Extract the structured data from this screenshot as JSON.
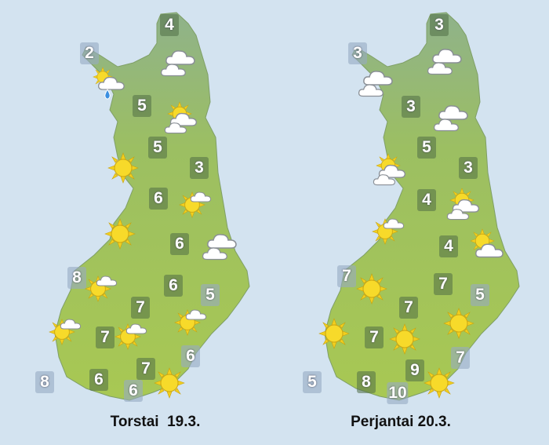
{
  "colors": {
    "sea": "#d3e3f0",
    "land": "#9cc25a",
    "sun": "#f5d727",
    "cloud": "#ffffff"
  },
  "thursday": {
    "label": "Torstai  19.3.",
    "temps": [
      "4",
      "2",
      "5",
      "5",
      "3",
      "6",
      "6",
      "8",
      "6",
      "5",
      "7",
      "7",
      "6",
      "7",
      "8",
      "6",
      "6"
    ],
    "icons": [
      "cloudy",
      "light-rain",
      "partly-cloudy",
      "sunny",
      "partly-cloudy",
      "sunny",
      "cloudy",
      "partly-cloudy",
      "partly-cloudy",
      "partly-cloudy",
      "partly-cloudy",
      "sunny"
    ]
  },
  "friday": {
    "label": "Perjantai 20.3.",
    "temps": [
      "3",
      "3",
      "3",
      "5",
      "3",
      "4",
      "4",
      "7",
      "7",
      "5",
      "7",
      "7",
      "7",
      "9",
      "5",
      "8",
      "10"
    ],
    "icons": [
      "cloudy",
      "cloudy",
      "cloudy",
      "partly-cloudy",
      "partly-cloudy",
      "partly-cloudy",
      "partly-cloudy",
      "sunny",
      "sunny",
      "sunny",
      "sunny",
      "sunny"
    ]
  }
}
